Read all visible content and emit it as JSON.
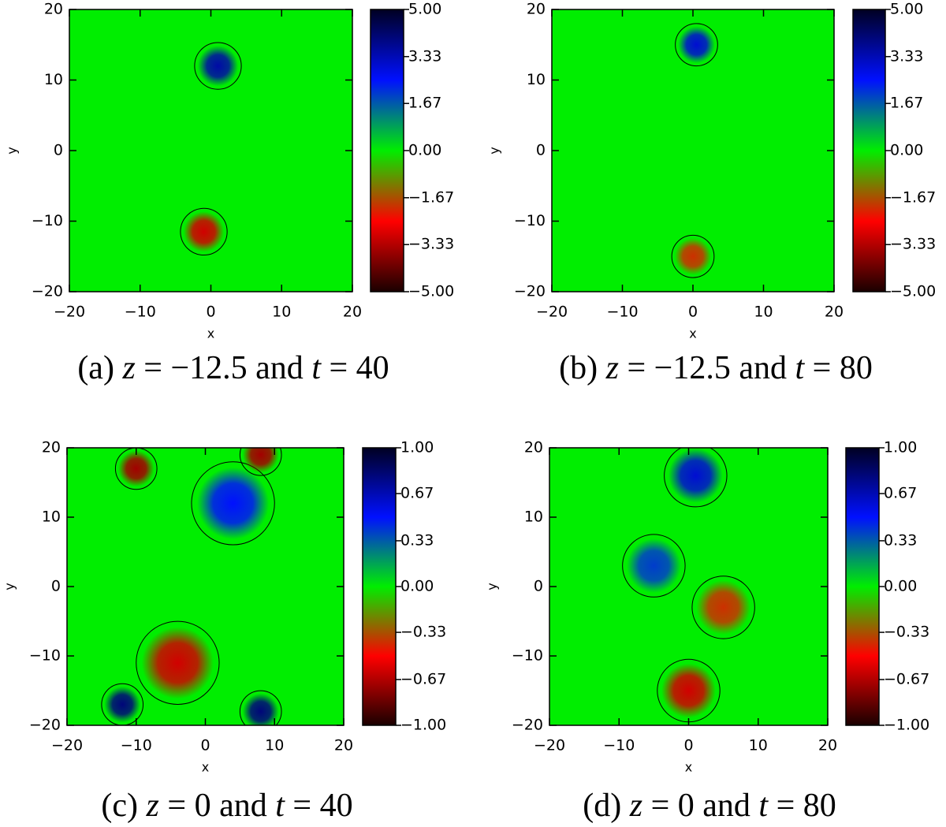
{
  "chart_data": [
    {
      "type": "heatmap",
      "x_label": "x",
      "y_label": "y",
      "xlim": [
        -20,
        20
      ],
      "ylim": [
        -20,
        20
      ],
      "xticks": [
        {
          "value": -20,
          "label": "−20"
        },
        {
          "value": -10,
          "label": "−10"
        },
        0,
        10,
        20
      ],
      "yticks": [
        {
          "value": -20,
          "label": "−20"
        },
        {
          "value": -10,
          "label": "−10"
        },
        0,
        10,
        20
      ],
      "zlim": [
        -5,
        5
      ],
      "zticks": [
        {
          "value": 5,
          "label": "5.00"
        },
        {
          "value": 3.33,
          "label": "3.33"
        },
        {
          "value": 1.67,
          "label": "1.67"
        },
        {
          "value": 0,
          "label": "0.00"
        },
        {
          "value": -1.67,
          "label": "−1.67"
        },
        {
          "value": -3.33,
          "label": "−3.33"
        },
        {
          "value": -5,
          "label": "−5.00"
        }
      ],
      "colormap": [
        "#1a0000",
        "#ff0000",
        "#00ee00",
        "#0010ff",
        "#000022"
      ],
      "blobs": [
        {
          "x": 1,
          "y": 12,
          "r": 2.2,
          "value": 3.5
        },
        {
          "x": -1,
          "y": -11.5,
          "r": 2.2,
          "value": -3
        }
      ],
      "caption": [
        "(a) ",
        "z",
        " = −12.5 and ",
        "t",
        " = 40"
      ]
    },
    {
      "type": "heatmap",
      "x_label": "x",
      "y_label": "y",
      "xlim": [
        -20,
        20
      ],
      "ylim": [
        -20,
        20
      ],
      "xticks": [
        {
          "value": -20,
          "label": "−20"
        },
        {
          "value": -10,
          "label": "−10"
        },
        0,
        10,
        20
      ],
      "yticks": [
        {
          "value": -20,
          "label": "−20"
        },
        {
          "value": -10,
          "label": "−10"
        },
        0,
        10,
        20
      ],
      "zlim": [
        -5,
        5
      ],
      "zticks": [
        {
          "value": 5,
          "label": "5.00"
        },
        {
          "value": 3.33,
          "label": "3.33"
        },
        {
          "value": 1.67,
          "label": "1.67"
        },
        {
          "value": 0,
          "label": "0.00"
        },
        {
          "value": -1.67,
          "label": "−1.67"
        },
        {
          "value": -3.33,
          "label": "−3.33"
        },
        {
          "value": -5,
          "label": "−5.00"
        }
      ],
      "colormap": [
        "#1a0000",
        "#ff0000",
        "#00ee00",
        "#0010ff",
        "#000022"
      ],
      "blobs": [
        {
          "x": 0.5,
          "y": 15,
          "r": 2,
          "value": 3
        },
        {
          "x": 0,
          "y": -15,
          "r": 2,
          "value": -2
        }
      ],
      "caption": [
        "(b) ",
        "z",
        " = −12.5 and ",
        "t",
        " = 80"
      ]
    },
    {
      "type": "heatmap",
      "x_label": "x",
      "y_label": "y",
      "xlim": [
        -20,
        20
      ],
      "ylim": [
        -20,
        20
      ],
      "xticks": [
        {
          "value": -20,
          "label": "−20"
        },
        {
          "value": -10,
          "label": "−10"
        },
        0,
        10,
        20
      ],
      "yticks": [
        {
          "value": -20,
          "label": "−20"
        },
        {
          "value": -10,
          "label": "−10"
        },
        0,
        10,
        20
      ],
      "zlim": [
        -1,
        1
      ],
      "zticks": [
        {
          "value": 1,
          "label": "1.00"
        },
        {
          "value": 0.67,
          "label": "0.67"
        },
        {
          "value": 0.33,
          "label": "0.33"
        },
        {
          "value": 0,
          "label": "0.00"
        },
        {
          "value": -0.33,
          "label": "−0.33"
        },
        {
          "value": -0.67,
          "label": "−0.67"
        },
        {
          "value": -1,
          "label": "−1.00"
        }
      ],
      "colormap": [
        "#1a0000",
        "#ff0000",
        "#00ee00",
        "#0010ff",
        "#000022"
      ],
      "blobs": [
        {
          "x": 4,
          "y": 12,
          "r": 4,
          "value": 0.5
        },
        {
          "x": -4,
          "y": -11,
          "r": 4,
          "value": -0.6
        },
        {
          "x": -10,
          "y": 17,
          "r": 2,
          "value": -0.7
        },
        {
          "x": 8,
          "y": 19,
          "r": 2,
          "value": -0.7
        },
        {
          "x": -12,
          "y": -17,
          "r": 2,
          "value": 0.8
        },
        {
          "x": 8,
          "y": -18,
          "r": 2,
          "value": 0.8
        }
      ],
      "caption": [
        "(c) ",
        "z",
        " = 0 and ",
        "t",
        " = 40"
      ]
    },
    {
      "type": "heatmap",
      "x_label": "x",
      "y_label": "y",
      "xlim": [
        -20,
        20
      ],
      "ylim": [
        -20,
        20
      ],
      "xticks": [
        {
          "value": -20,
          "label": "−20"
        },
        {
          "value": -10,
          "label": "−10"
        },
        0,
        10,
        20
      ],
      "yticks": [
        {
          "value": -20,
          "label": "−20"
        },
        {
          "value": -10,
          "label": "−10"
        },
        0,
        10,
        20
      ],
      "zlim": [
        -1,
        1
      ],
      "zticks": [
        {
          "value": 1,
          "label": "1.00"
        },
        {
          "value": 0.67,
          "label": "0.67"
        },
        {
          "value": 0.33,
          "label": "0.33"
        },
        {
          "value": 0,
          "label": "0.00"
        },
        {
          "value": -0.33,
          "label": "−0.33"
        },
        {
          "value": -0.67,
          "label": "−0.67"
        },
        {
          "value": -1,
          "label": "−1.00"
        }
      ],
      "colormap": [
        "#1a0000",
        "#ff0000",
        "#00ee00",
        "#0010ff",
        "#000022"
      ],
      "blobs": [
        {
          "x": 1,
          "y": 16,
          "r": 3,
          "value": 0.6
        },
        {
          "x": 0,
          "y": -15,
          "r": 3,
          "value": -0.6
        },
        {
          "x": -5,
          "y": 3,
          "r": 3,
          "value": 0.4
        },
        {
          "x": 5,
          "y": -3,
          "r": 3,
          "value": -0.4
        }
      ],
      "caption": [
        "(d) ",
        "z",
        " = 0 and ",
        "t",
        " = 80"
      ]
    }
  ]
}
